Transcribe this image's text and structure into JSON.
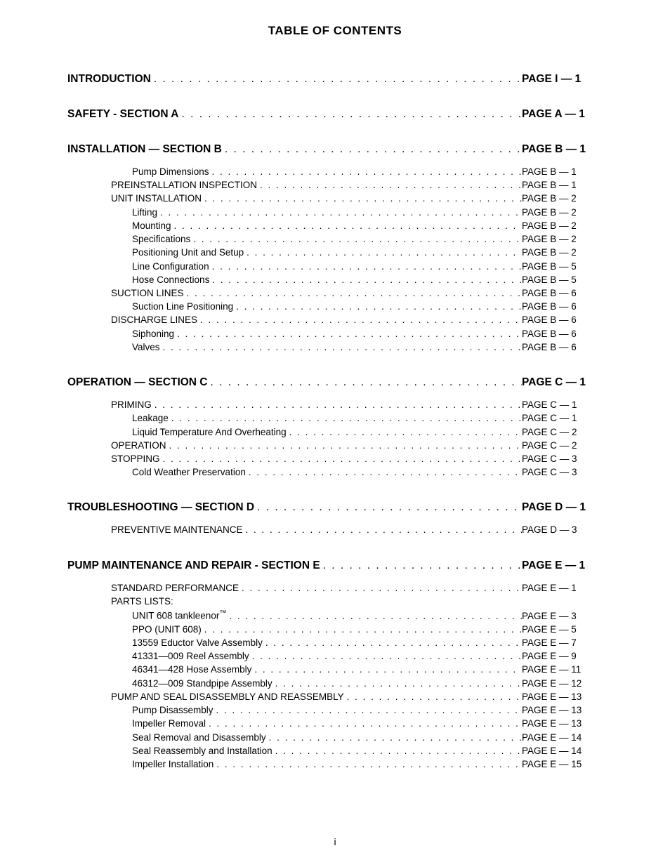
{
  "title": "TABLE OF CONTENTS",
  "pagenum": "i",
  "leader_char": ".",
  "colors": {
    "text": "#000000",
    "background": "#ffffff"
  },
  "fonts": {
    "title_pt": 17,
    "section_pt": 15.5,
    "entry_pt": 13.5
  },
  "sections": [
    {
      "label": "INTRODUCTION",
      "page": "PAGE I — 1",
      "entries": []
    },
    {
      "label": "SAFETY - SECTION A",
      "page": "PAGE A — 1",
      "entries": []
    },
    {
      "label": "INSTALLATION — SECTION B",
      "page": "PAGE B — 1",
      "entries": [
        {
          "indent": 2,
          "label": "Pump Dimensions",
          "page": "PAGE B — 1"
        },
        {
          "indent": 1,
          "label": "PREINSTALLATION INSPECTION",
          "page": "PAGE B — 1"
        },
        {
          "indent": 1,
          "label": "UNIT INSTALLATION",
          "page": "PAGE B — 2"
        },
        {
          "indent": 2,
          "label": "Lifting",
          "page": "PAGE B — 2"
        },
        {
          "indent": 2,
          "label": "Mounting",
          "page": "PAGE B — 2"
        },
        {
          "indent": 2,
          "label": "Specifications",
          "page": "PAGE B — 2"
        },
        {
          "indent": 2,
          "label": "Positioning Unit and Setup",
          "page": "PAGE B — 2"
        },
        {
          "indent": 2,
          "label": "Line Configuration",
          "page": "PAGE B — 5"
        },
        {
          "indent": 2,
          "label": "Hose Connections",
          "page": "PAGE B — 5"
        },
        {
          "indent": 1,
          "label": "SUCTION LINES",
          "page": "PAGE B — 6"
        },
        {
          "indent": 2,
          "label": "Suction Line Positioning",
          "page": "PAGE B — 6"
        },
        {
          "indent": 1,
          "label": "DISCHARGE LINES",
          "page": "PAGE B — 6"
        },
        {
          "indent": 2,
          "label": "Siphoning",
          "page": "PAGE B — 6"
        },
        {
          "indent": 2,
          "label": "Valves",
          "page": "PAGE B — 6"
        }
      ]
    },
    {
      "label": "OPERATION — SECTION C",
      "page": "PAGE C — 1",
      "entries": [
        {
          "indent": 1,
          "label": "PRIMING",
          "page": "PAGE C — 1"
        },
        {
          "indent": 2,
          "label": "Leakage",
          "page": "PAGE C — 1"
        },
        {
          "indent": 2,
          "label": "Liquid Temperature And Overheating",
          "page": "PAGE C — 2"
        },
        {
          "indent": 1,
          "label": "OPERATION",
          "page": "PAGE C — 2"
        },
        {
          "indent": 1,
          "label": "STOPPING",
          "page": "PAGE C — 3"
        },
        {
          "indent": 2,
          "label": "Cold Weather Preservation",
          "page": "PAGE C — 3"
        }
      ]
    },
    {
      "label": "TROUBLESHOOTING — SECTION D",
      "page": "PAGE D — 1",
      "entries": [
        {
          "indent": 1,
          "label": "PREVENTIVE MAINTENANCE",
          "page": "PAGE D — 3"
        }
      ]
    },
    {
      "label": "PUMP MAINTENANCE AND REPAIR - SECTION E",
      "page": "PAGE E — 1",
      "entries": [
        {
          "indent": 1,
          "label": "STANDARD PERFORMANCE",
          "page": "PAGE E — 1"
        },
        {
          "indent": 1,
          "label": "PARTS LISTS:",
          "noleader": true
        },
        {
          "indent": 2,
          "html": true,
          "label": "UNIT 608 tankleenor<span class=\"tm\">™</span>",
          "page": "PAGE E — 3"
        },
        {
          "indent": 2,
          "label": "PPO (UNIT 608)",
          "page": "PAGE E — 5"
        },
        {
          "indent": 2,
          "label": "13559 Eductor Valve Assembly",
          "page": "PAGE E — 7"
        },
        {
          "indent": 2,
          "label": "41331—009 Reel Assembly",
          "page": "PAGE E — 9"
        },
        {
          "indent": 2,
          "label": "46341—428 Hose Assembly",
          "page": "PAGE E — 11"
        },
        {
          "indent": 2,
          "label": "46312—009 Standpipe  Assembly",
          "page": "PAGE E — 12"
        },
        {
          "indent": 1,
          "label": "PUMP AND SEAL DISASSEMBLY AND REASSEMBLY",
          "page": "PAGE E — 13"
        },
        {
          "indent": 2,
          "label": "Pump Disassembly",
          "page": "PAGE E — 13"
        },
        {
          "indent": 2,
          "label": "Impeller Removal",
          "page": "PAGE E — 13"
        },
        {
          "indent": 2,
          "label": "Seal Removal and Disassembly",
          "page": "PAGE E — 14"
        },
        {
          "indent": 2,
          "label": "Seal Reassembly and Installation",
          "page": "PAGE E — 14"
        },
        {
          "indent": 2,
          "label": "Impeller Installation",
          "page": "PAGE E — 15"
        }
      ]
    }
  ]
}
